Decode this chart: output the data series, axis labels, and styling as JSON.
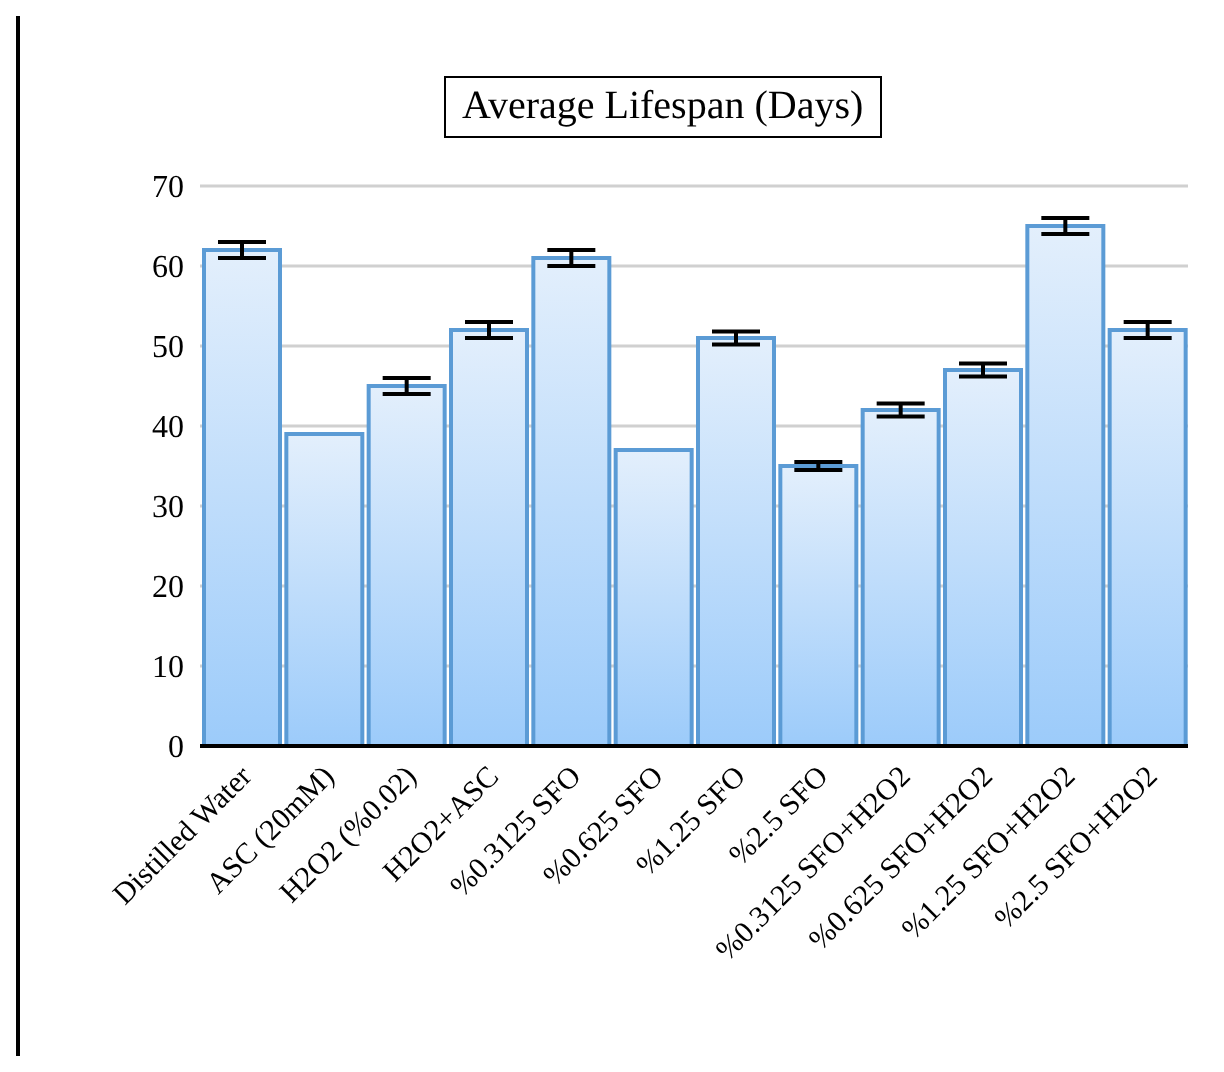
{
  "chart_data": {
    "type": "bar",
    "title": "Average Lifespan (Days)",
    "categories": [
      "Distilled Water",
      "ASC (20mM)",
      "H2O2 (%0.02)",
      "H2O2+ASC",
      "%0.3125 SFO",
      "%0.625 SFO",
      "%1.25 SFO",
      "%2.5 SFO",
      "%0.3125 SFO+H2O2",
      "%0.625 SFO+H2O2",
      "%1.25 SFO+H2O2",
      "%2.5 SFO+H2O2"
    ],
    "values": [
      62,
      39,
      45,
      52,
      61,
      37,
      51,
      35,
      42,
      47,
      65,
      52
    ],
    "errors": [
      1,
      0,
      1,
      1,
      1,
      0,
      0.8,
      0.5,
      0.8,
      0.8,
      1,
      1
    ],
    "color": "#5b9bd5",
    "ylim": [
      0,
      70
    ],
    "yticks": [
      0,
      10,
      20,
      30,
      40,
      50,
      60,
      70
    ],
    "grid": "y"
  }
}
